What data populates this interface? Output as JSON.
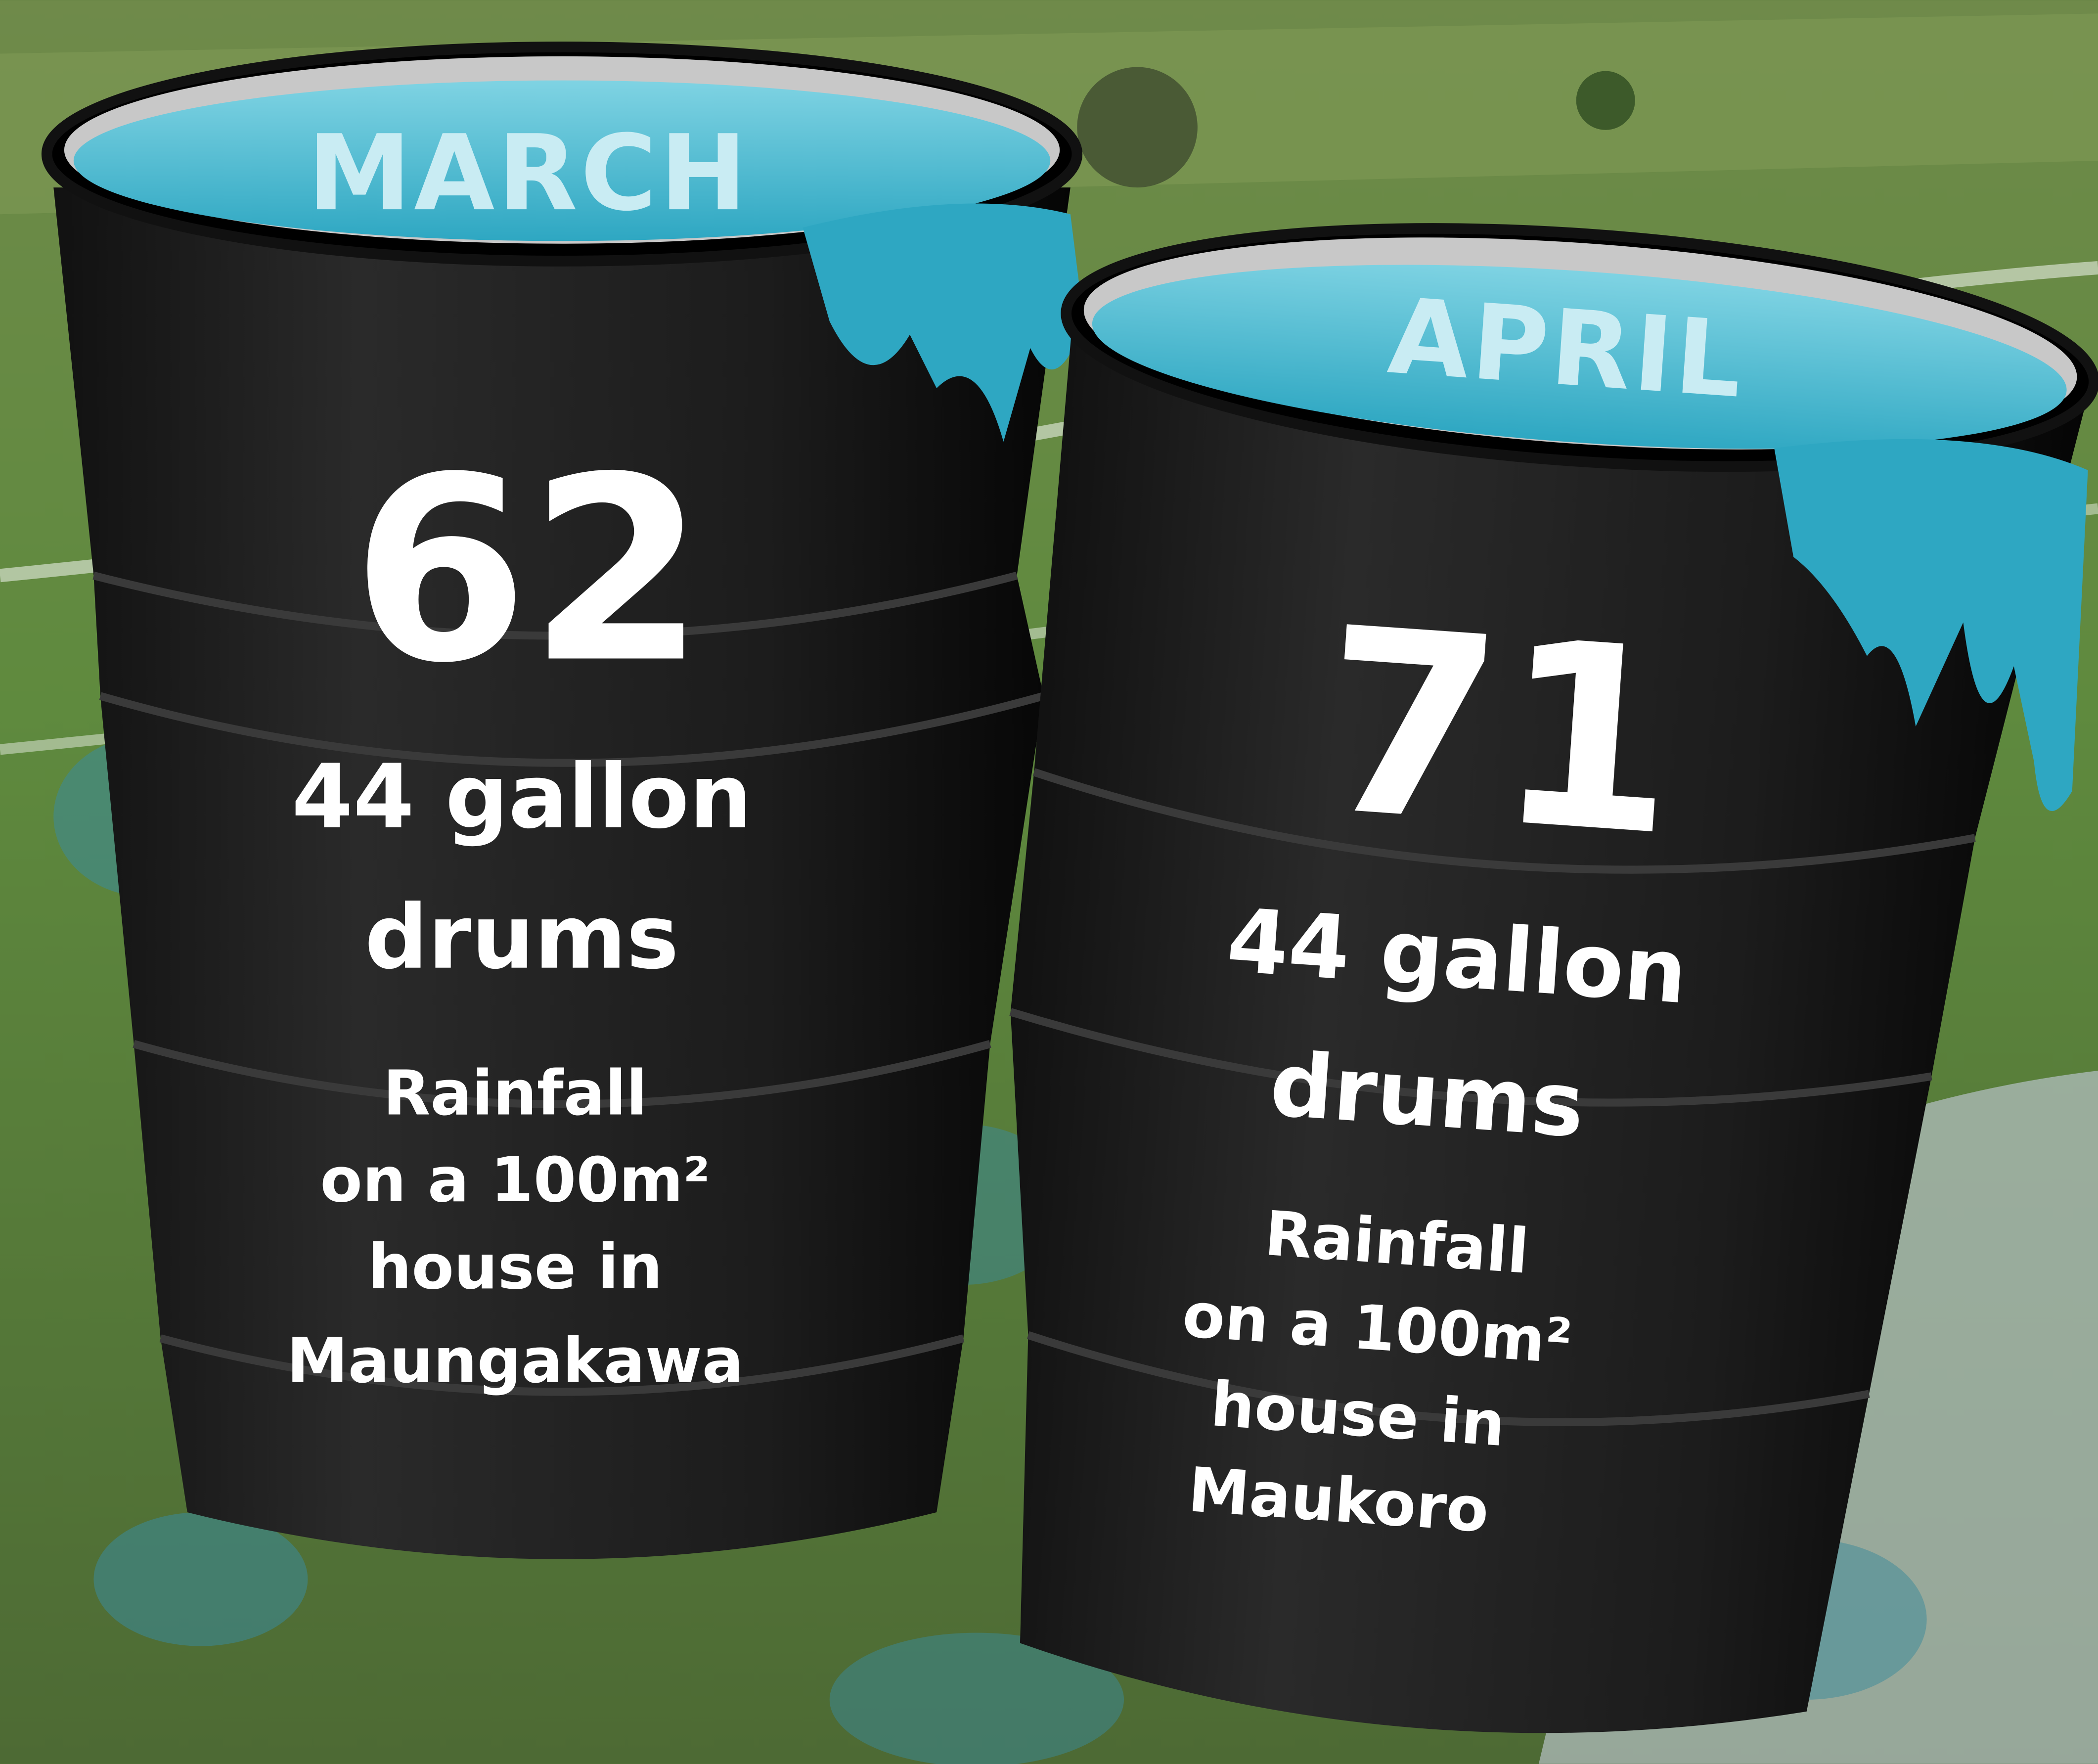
{
  "drums": [
    {
      "month": "MARCH",
      "count": 62,
      "unit_lines": [
        "44 gallon",
        "drums"
      ],
      "description_lines": [
        "Rainfall",
        "on a 100m²",
        "house in",
        "Maungakawa"
      ]
    },
    {
      "month": "APRIL",
      "count": 71,
      "unit_lines": [
        "44 gallon",
        "drums"
      ],
      "description_lines": [
        "Rainfall",
        "on a 100m²",
        "house in",
        "Maukoro"
      ]
    }
  ]
}
